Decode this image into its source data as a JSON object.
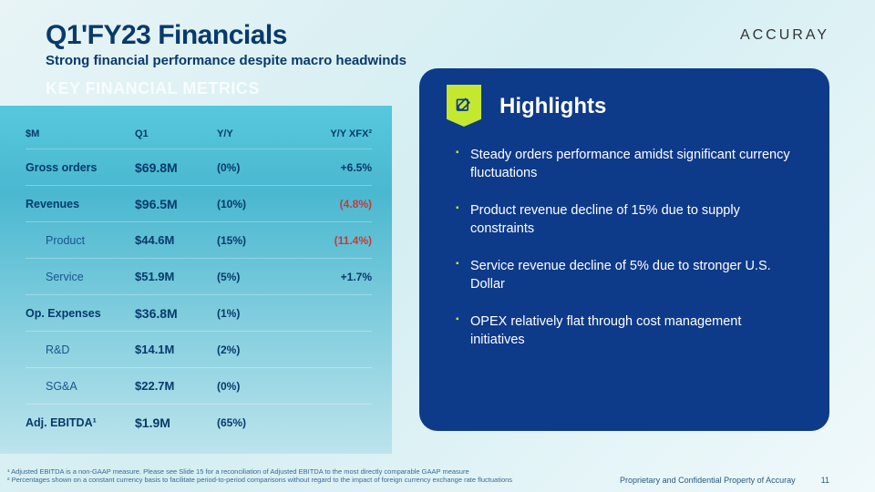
{
  "header": {
    "title": "Q1'FY23 Financials",
    "subtitle": "Strong financial performance despite macro headwinds",
    "brand": "ACCURAY"
  },
  "metrics": {
    "title": "KEY FINANCIAL METRICS",
    "columns": {
      "unit": "$M",
      "period": "Q1",
      "yy": "Y/Y",
      "xfx": "Y/Y XFX²"
    },
    "rows": [
      {
        "label": "Gross orders",
        "value": "$69.8M",
        "yy": "(0%)",
        "xfx": "+6.5%",
        "sub": false,
        "xfx_sign": "pos"
      },
      {
        "label": "Revenues",
        "value": "$96.5M",
        "yy": "(10%)",
        "xfx": "(4.8%)",
        "sub": false,
        "xfx_sign": "neg"
      },
      {
        "label": "Product",
        "value": "$44.6M",
        "yy": "(15%)",
        "xfx": "(11.4%)",
        "sub": true,
        "xfx_sign": "neg"
      },
      {
        "label": "Service",
        "value": "$51.9M",
        "yy": "(5%)",
        "xfx": "+1.7%",
        "sub": true,
        "xfx_sign": "pos"
      },
      {
        "label": "Op. Expenses",
        "value": "$36.8M",
        "yy": "(1%)",
        "xfx": "",
        "sub": false,
        "xfx_sign": ""
      },
      {
        "label": "R&D",
        "value": "$14.1M",
        "yy": "(2%)",
        "xfx": "",
        "sub": true,
        "xfx_sign": ""
      },
      {
        "label": "SG&A",
        "value": "$22.7M",
        "yy": "(0%)",
        "xfx": "",
        "sub": true,
        "xfx_sign": ""
      },
      {
        "label": "Adj. EBITDA¹",
        "value": "$1.9M",
        "yy": "(65%)",
        "xfx": "",
        "sub": false,
        "xfx_sign": ""
      }
    ]
  },
  "highlights": {
    "title": "Highlights",
    "items": [
      "Steady orders performance amidst significant currency fluctuations",
      "Product revenue decline of 15% due to supply constraints",
      "Service revenue decline of 5% due to stronger U.S. Dollar",
      "OPEX relatively flat through cost management initiatives"
    ]
  },
  "footer": {
    "note1": "¹ Adjusted EBITDA is a non-GAAP measure.  Please see Slide 15 for a reconciliation of Adjusted EBITDA to the most directly comparable GAAP measure",
    "note2": "² Percentages shown on a constant currency basis to facilitate period-to-period comparisons without regard to the impact of foreign currency exchange rate fluctuations",
    "confidential": "Proprietary and Confidential Property of Accuray",
    "page": "11"
  },
  "colors": {
    "accent_lime": "#c4e82e",
    "panel_blue": "#0e3a8a",
    "deep_navy": "#083a6b",
    "negative": "#c73a3a"
  }
}
